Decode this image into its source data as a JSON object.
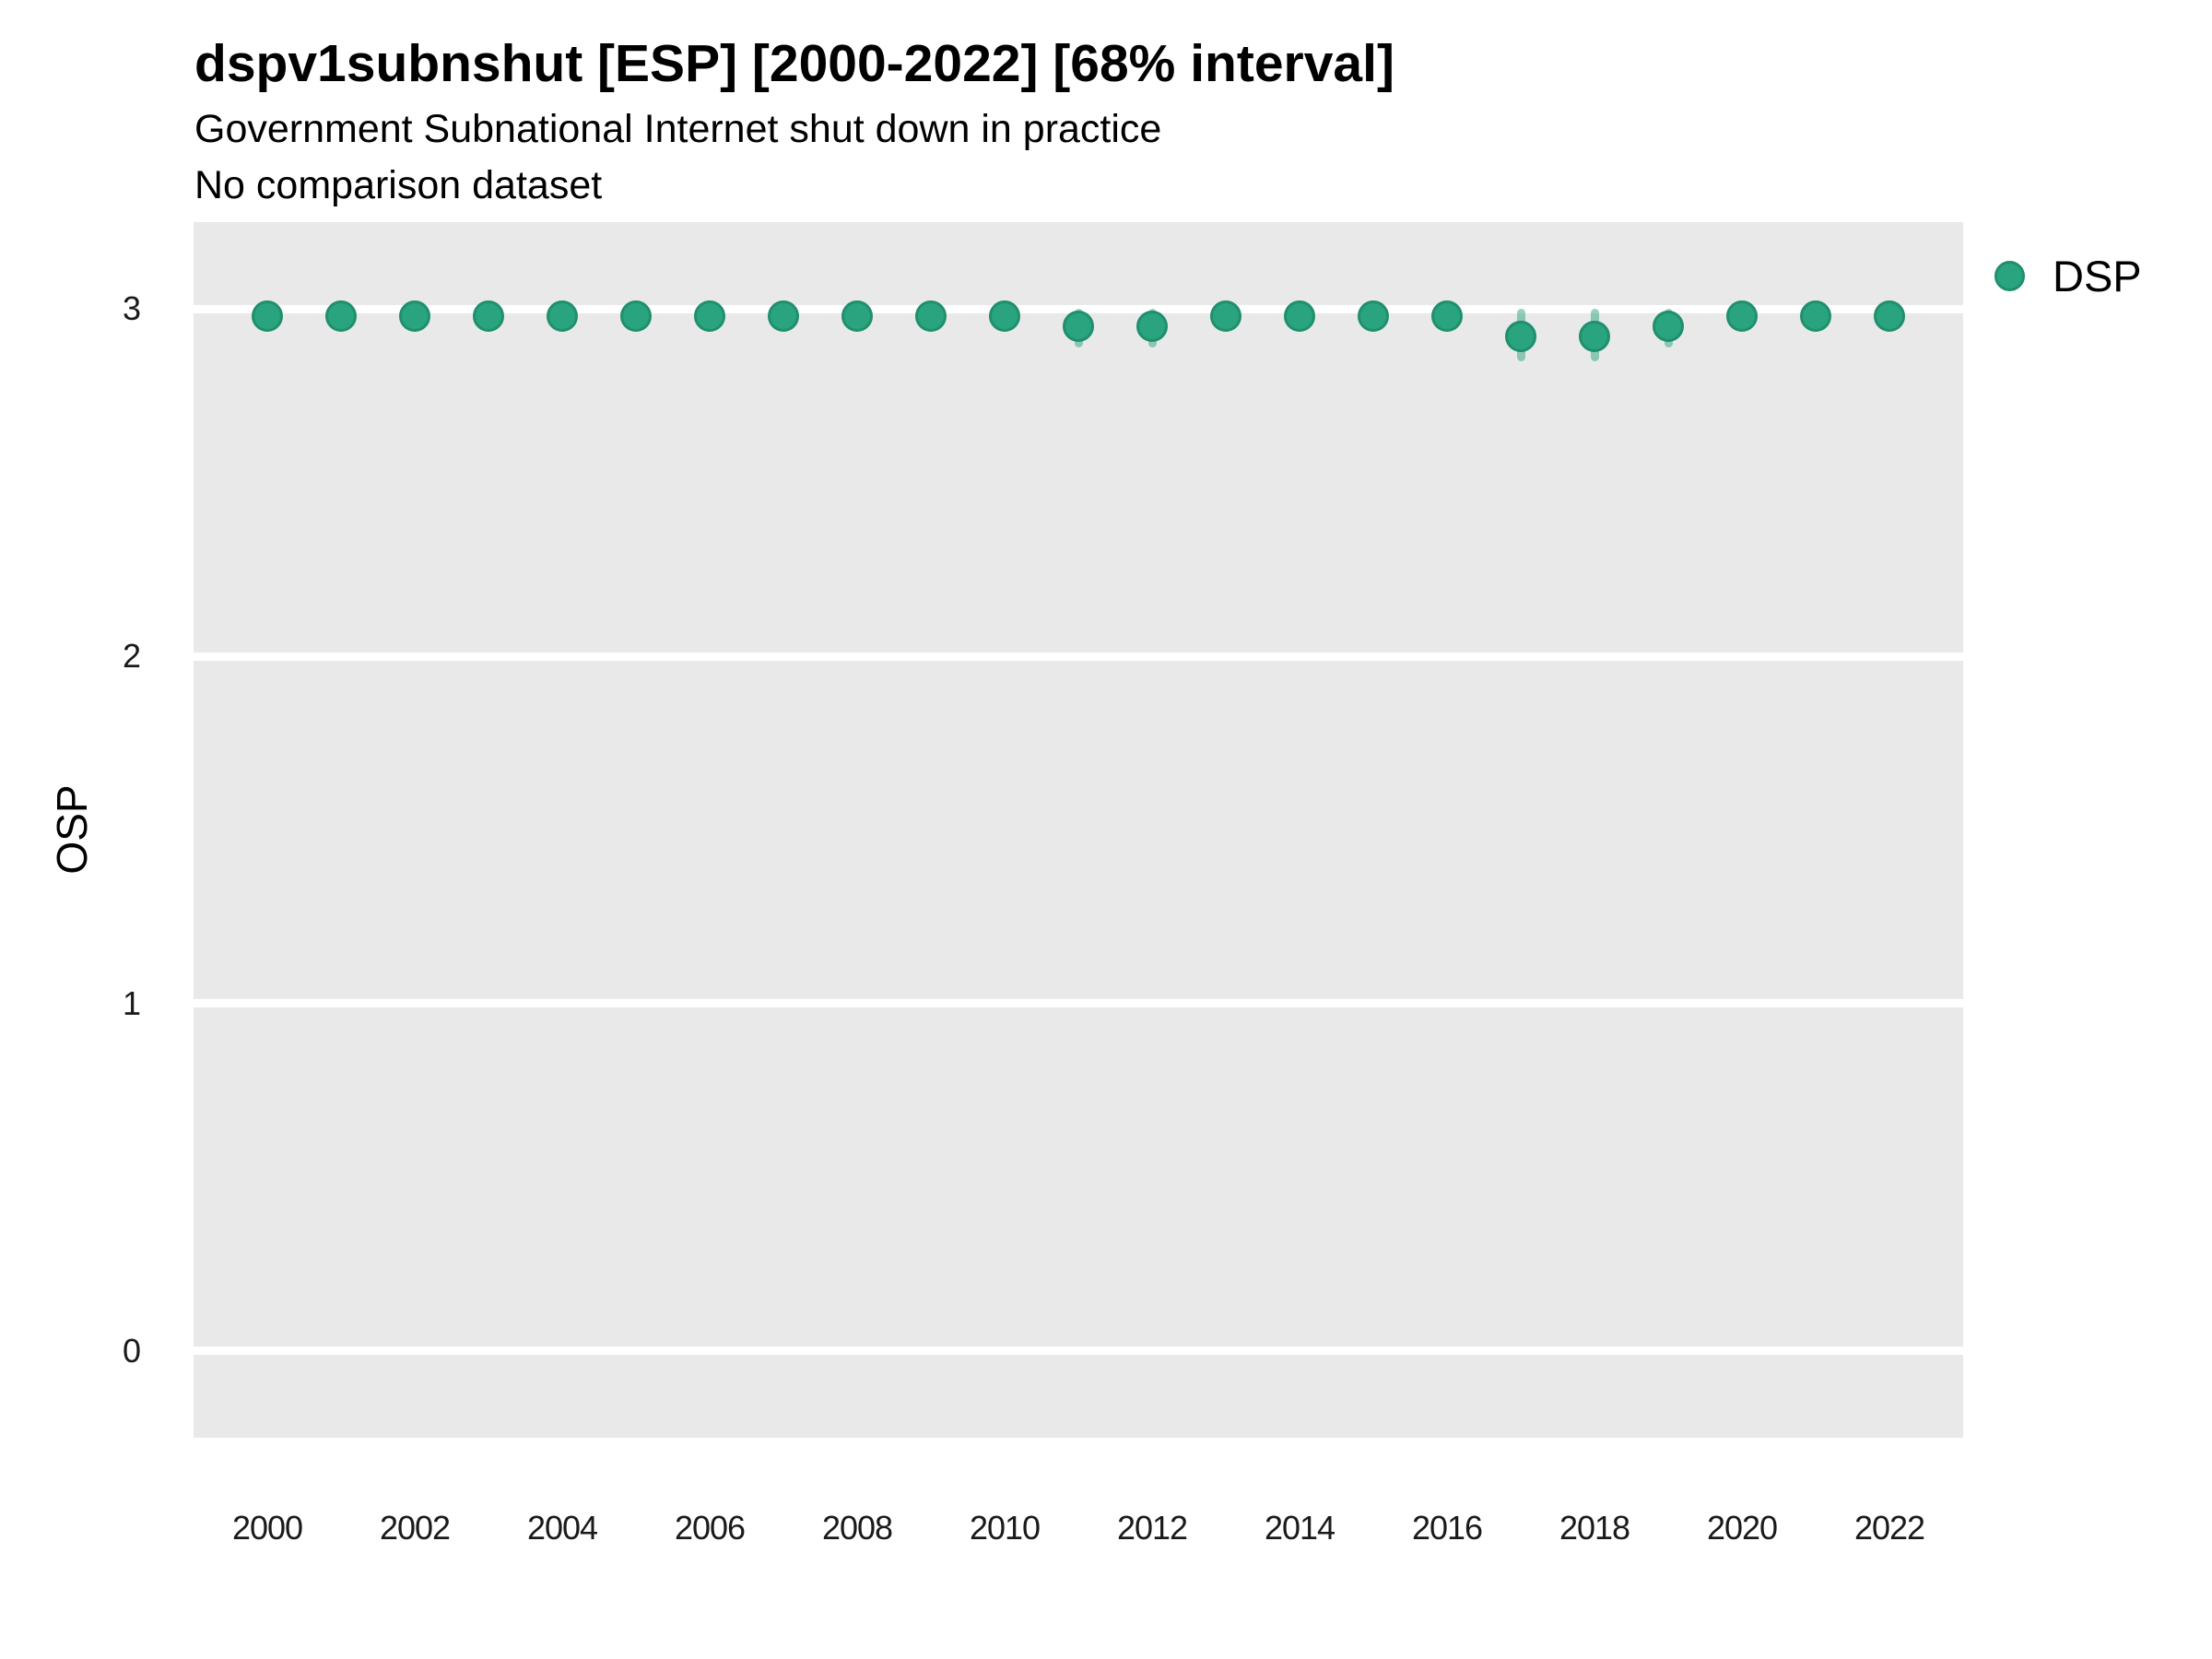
{
  "title": "dspv1subnshut [ESP] [2000-2022] [68% interval]",
  "subtitle": "Government Subnational Internet shut down in practice",
  "comparison_note": "No comparison dataset",
  "y_axis_title": "OSP",
  "legend": {
    "series_label": "DSP",
    "marker": "circle-icon"
  },
  "colors": {
    "point_fill": "#2aa47e",
    "point_border": "#1f8f6d",
    "interval_band": "#2aa47e",
    "panel_background": "#e9e9e9",
    "gridline": "#ffffff",
    "text": "#000000"
  },
  "chart_data": {
    "type": "scatter",
    "title": "dspv1subnshut [ESP] [2000-2022] [68% interval]",
    "subtitle": "Government Subnational Internet shut down in practice",
    "note": "No comparison dataset",
    "xlabel": "",
    "ylabel": "OSP",
    "x": [
      2000,
      2001,
      2002,
      2003,
      2004,
      2005,
      2006,
      2007,
      2008,
      2009,
      2010,
      2011,
      2012,
      2013,
      2014,
      2015,
      2016,
      2017,
      2018,
      2019,
      2020,
      2021,
      2022
    ],
    "series": [
      {
        "name": "DSP",
        "values": [
          2.98,
          2.98,
          2.98,
          2.98,
          2.98,
          2.98,
          2.98,
          2.98,
          2.98,
          2.98,
          2.98,
          2.95,
          2.95,
          2.98,
          2.98,
          2.98,
          2.98,
          2.92,
          2.92,
          2.95,
          2.98,
          2.98,
          2.98
        ],
        "interval_68_low": [
          null,
          null,
          null,
          null,
          null,
          null,
          null,
          null,
          null,
          null,
          null,
          2.89,
          2.89,
          null,
          null,
          null,
          null,
          2.85,
          2.85,
          2.89,
          null,
          null,
          null
        ],
        "interval_68_high": [
          null,
          null,
          null,
          null,
          null,
          null,
          null,
          null,
          null,
          null,
          null,
          3.0,
          3.0,
          null,
          null,
          null,
          null,
          3.0,
          3.0,
          3.0,
          null,
          null,
          null
        ]
      }
    ],
    "x_ticks": [
      2000,
      2002,
      2004,
      2006,
      2008,
      2010,
      2012,
      2014,
      2016,
      2018,
      2020,
      2022
    ],
    "y_ticks": [
      0,
      1,
      2,
      3
    ],
    "xlim": [
      1999,
      2023
    ],
    "ylim": [
      -0.25,
      3.25
    ],
    "grid": "major-white-on-grey",
    "legend_position": "right"
  }
}
